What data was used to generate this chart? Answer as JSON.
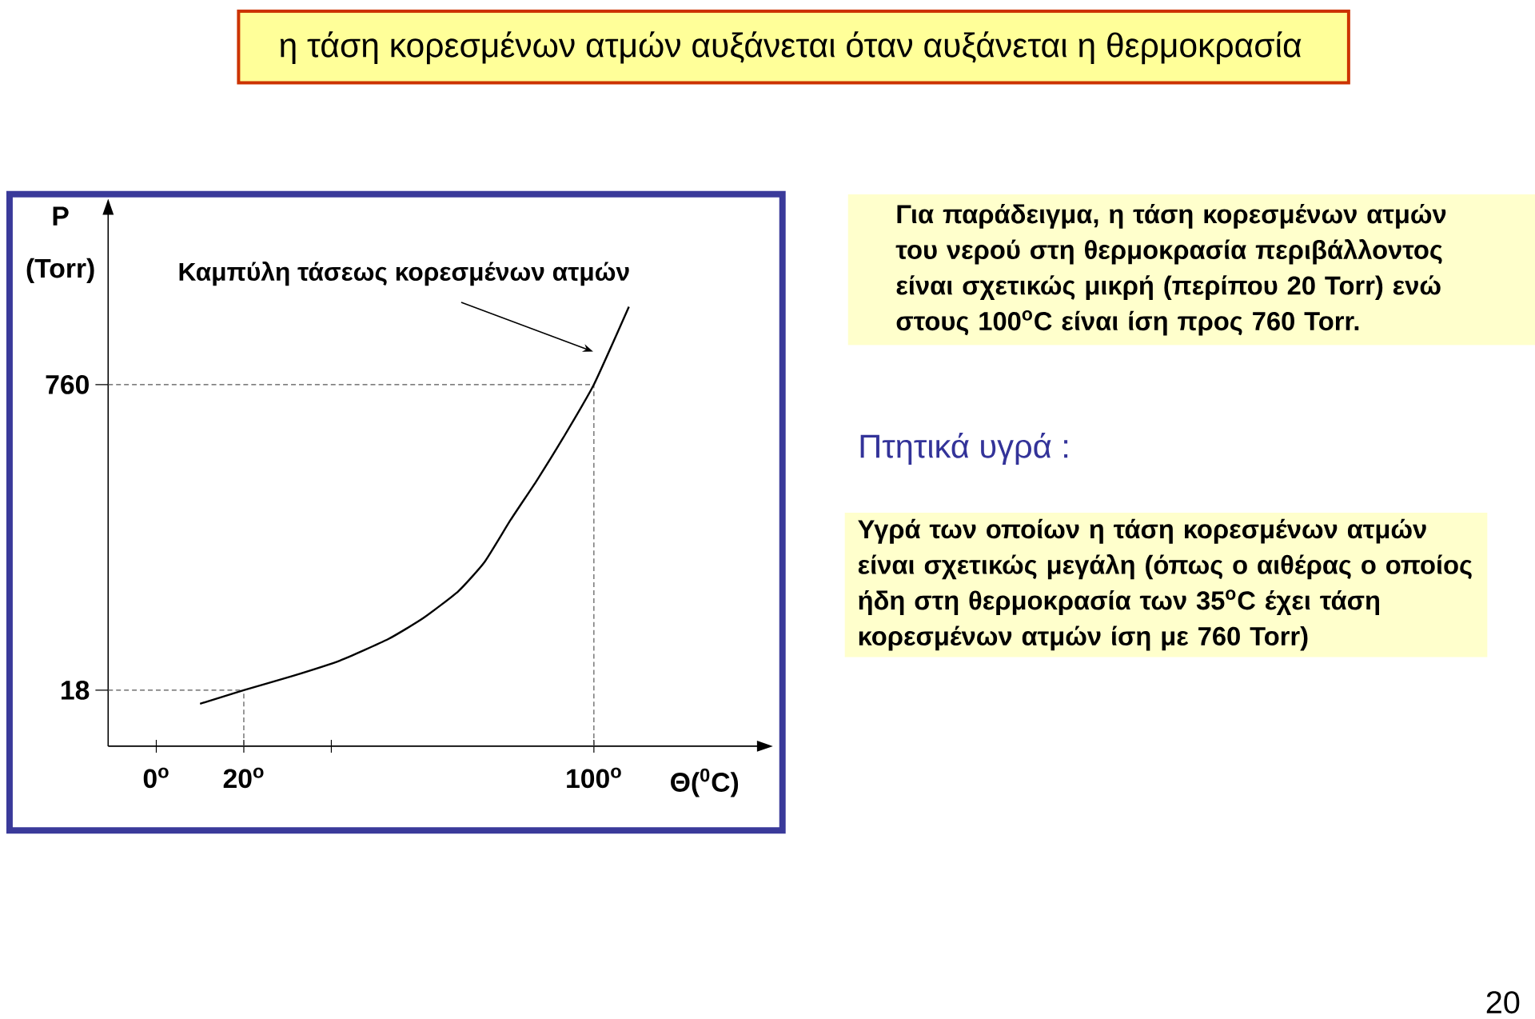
{
  "chart_data": {
    "type": "line",
    "title": "η τάση κορεσμένων ατμών αυξάνεται όταν αυξάνεται η θερμοκρασία",
    "xlabel": "Θ($^{0}$C)",
    "ylabel": "P (Torr)",
    "x": [
      10,
      20,
      31,
      42,
      53,
      61,
      69,
      75,
      81,
      87,
      93,
      100,
      108
    ],
    "values": [
      -15,
      18,
      52,
      90,
      142,
      193,
      258,
      329,
      432,
      528,
      631,
      760,
      949
    ],
    "color": "#000000",
    "marker": "none",
    "line_style": "solid",
    "xlim": [
      -11,
      138
    ],
    "ylim": [
      -118,
      1180
    ],
    "xticks": [
      {
        "value": 0,
        "label": "0$^{o}$"
      },
      {
        "value": 20,
        "label": "20$^{o}$"
      },
      {
        "value": 40,
        "label": null
      },
      {
        "value": 100,
        "label": "100$^{o}$"
      }
    ],
    "yticks": [
      18,
      760
    ],
    "ref_lines": [
      {
        "axis": "y",
        "value": 18,
        "color": "#555555",
        "line_style": "dashed"
      },
      {
        "axis": "y",
        "value": 760,
        "color": "#555555",
        "line_style": "dashed"
      },
      {
        "axis": "x",
        "value": 20,
        "color": "#555555",
        "line_style": "dashed"
      },
      {
        "axis": "x",
        "value": 100,
        "color": "#555555",
        "line_style": "dashed"
      }
    ],
    "annotations": [
      "Καμπύλη τάσεως κορεσμένων ατμών",
      "Για παράδειγμα, η τάση κορεσμένων ατμών του νερού στη θερμοκρασία περιβάλλοντος είναι σχετικώς μικρή (περίπου 20 Torr) ενώ στους 100$^{o}$C  είναι ίση προς 760 Torr.",
      "Πτητικά  υγρά :",
      "Υγρά των οποίων η τάση κορεσμένων ατμών είναι σχετικώς μεγάλη (όπως ο αιθέρας ο οποίος ήδη στη θερμοκρασία των 35$^{o}$C έχει τάση κορεσμένων ατμών ίση με 760 Torr)",
      "20"
    ]
  }
}
